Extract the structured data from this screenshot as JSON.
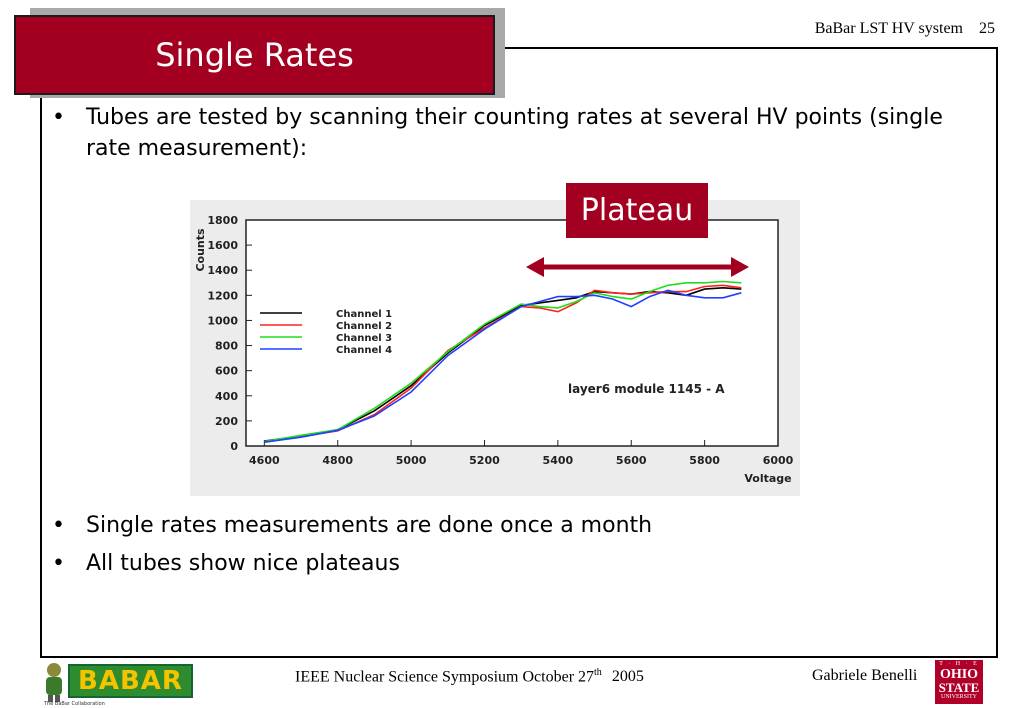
{
  "header": {
    "title": "BaBar LST HV system",
    "page_number": "25"
  },
  "slide": {
    "title": "Single Rates",
    "bullets_top": [
      "Tubes are tested by scanning their counting rates at several HV points (single rate measurement):"
    ],
    "bullets_bottom": [
      "Single rates measurements are done once a month",
      "All tubes show nice plateaus"
    ],
    "bullet_char": "•"
  },
  "callout": {
    "label": "Plateau",
    "color": "#a30021"
  },
  "footer": {
    "conference": "IEEE Nuclear Science Symposium  October 27",
    "conference_sup": "th",
    "year": "2005",
    "author": "Gabriele Benelli",
    "logo_left": "BABAR",
    "logo_left_sub": "The BaBar Collaboration",
    "logo_right_top": "T · H · E",
    "logo_right_line1": "OHIO",
    "logo_right_line2": "STATE",
    "logo_right_line3": "UNIVERSITY"
  },
  "chart_data": {
    "type": "line",
    "title": "",
    "xlabel": "Voltage",
    "ylabel": "Counts",
    "xlim": [
      4550,
      6000
    ],
    "ylim": [
      0,
      1800
    ],
    "xticks": [
      4600,
      4800,
      5000,
      5200,
      5400,
      5600,
      5800,
      6000
    ],
    "yticks": [
      0,
      200,
      400,
      600,
      800,
      1000,
      1200,
      1400,
      1600,
      1800
    ],
    "annotation": "layer6 module 1145 - A",
    "legend_position": "left",
    "x": [
      4600,
      4700,
      4800,
      4900,
      5000,
      5100,
      5200,
      5300,
      5350,
      5400,
      5450,
      5500,
      5550,
      5600,
      5650,
      5700,
      5750,
      5800,
      5850,
      5900
    ],
    "series": [
      {
        "name": "Channel 1",
        "color": "#000000",
        "values": [
          40,
          80,
          130,
          280,
          480,
          740,
          960,
          1120,
          1140,
          1160,
          1180,
          1230,
          1220,
          1210,
          1230,
          1220,
          1200,
          1250,
          1260,
          1250
        ]
      },
      {
        "name": "Channel 2",
        "color": "#ff2020",
        "values": [
          30,
          75,
          120,
          250,
          460,
          760,
          940,
          1110,
          1100,
          1070,
          1140,
          1240,
          1220,
          1210,
          1220,
          1230,
          1230,
          1270,
          1280,
          1260
        ]
      },
      {
        "name": "Channel 3",
        "color": "#20dd20",
        "values": [
          35,
          85,
          130,
          300,
          500,
          750,
          970,
          1130,
          1110,
          1100,
          1150,
          1220,
          1190,
          1170,
          1230,
          1280,
          1300,
          1300,
          1310,
          1300
        ]
      },
      {
        "name": "Channel 4",
        "color": "#2040ff",
        "values": [
          30,
          70,
          125,
          240,
          430,
          720,
          930,
          1110,
          1150,
          1190,
          1190,
          1200,
          1170,
          1110,
          1190,
          1240,
          1200,
          1180,
          1180,
          1220
        ]
      }
    ]
  }
}
